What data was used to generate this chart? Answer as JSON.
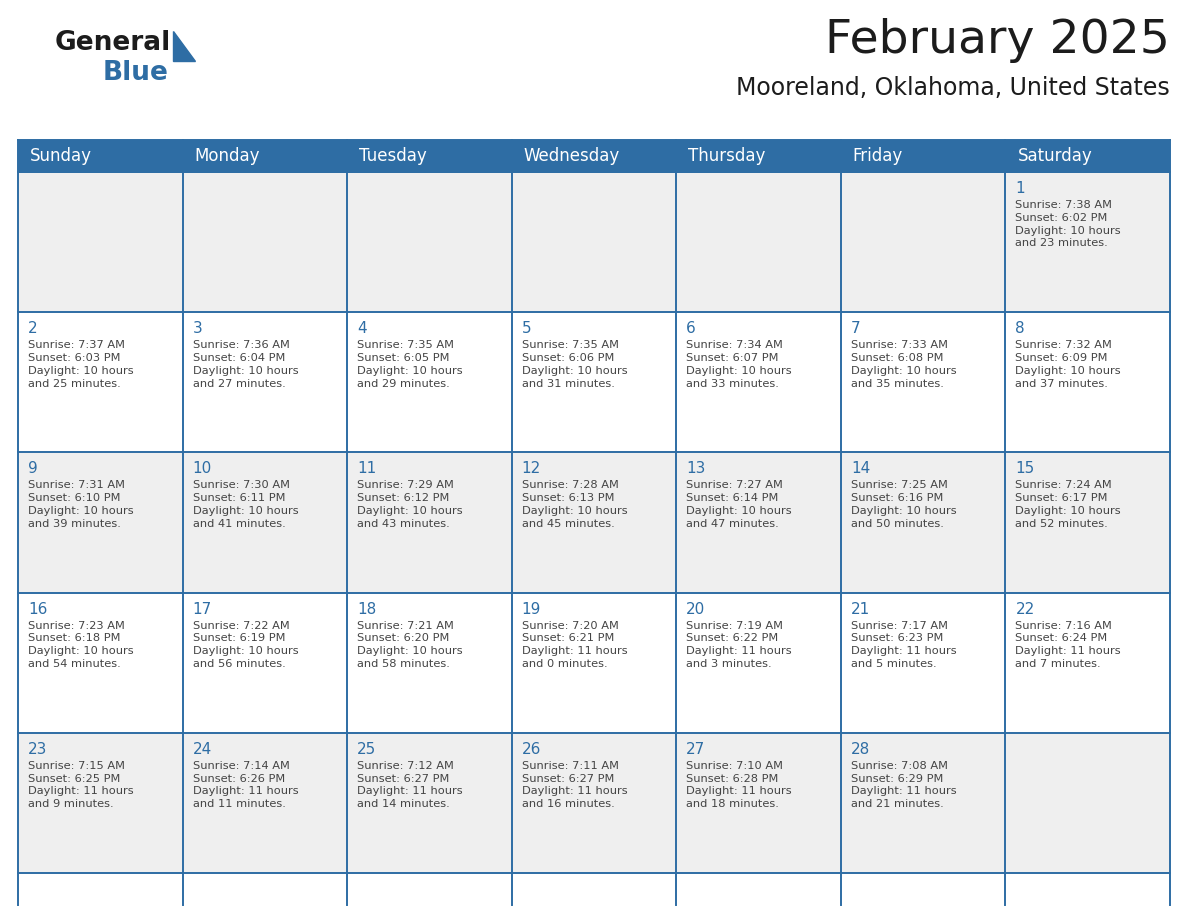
{
  "title": "February 2025",
  "subtitle": "Mooreland, Oklahoma, United States",
  "header_bg": "#2E6DA4",
  "header_text_color": "#FFFFFF",
  "cell_bg_row0": "#EFEFEF",
  "cell_bg_row1": "#FFFFFF",
  "cell_bg_row2": "#EFEFEF",
  "cell_bg_row3": "#FFFFFF",
  "cell_bg_row4": "#EFEFEF",
  "day_number_color": "#2E6DA4",
  "text_color": "#444444",
  "line_color": "#2E6DA4",
  "days_of_week": [
    "Sunday",
    "Monday",
    "Tuesday",
    "Wednesday",
    "Thursday",
    "Friday",
    "Saturday"
  ],
  "weeks": [
    [
      null,
      null,
      null,
      null,
      null,
      null,
      1
    ],
    [
      2,
      3,
      4,
      5,
      6,
      7,
      8
    ],
    [
      9,
      10,
      11,
      12,
      13,
      14,
      15
    ],
    [
      16,
      17,
      18,
      19,
      20,
      21,
      22
    ],
    [
      23,
      24,
      25,
      26,
      27,
      28,
      null
    ]
  ],
  "cell_data": {
    "1": {
      "sunrise": "7:38 AM",
      "sunset": "6:02 PM",
      "daylight": "10 hours and 23 minutes."
    },
    "2": {
      "sunrise": "7:37 AM",
      "sunset": "6:03 PM",
      "daylight": "10 hours and 25 minutes."
    },
    "3": {
      "sunrise": "7:36 AM",
      "sunset": "6:04 PM",
      "daylight": "10 hours and 27 minutes."
    },
    "4": {
      "sunrise": "7:35 AM",
      "sunset": "6:05 PM",
      "daylight": "10 hours and 29 minutes."
    },
    "5": {
      "sunrise": "7:35 AM",
      "sunset": "6:06 PM",
      "daylight": "10 hours and 31 minutes."
    },
    "6": {
      "sunrise": "7:34 AM",
      "sunset": "6:07 PM",
      "daylight": "10 hours and 33 minutes."
    },
    "7": {
      "sunrise": "7:33 AM",
      "sunset": "6:08 PM",
      "daylight": "10 hours and 35 minutes."
    },
    "8": {
      "sunrise": "7:32 AM",
      "sunset": "6:09 PM",
      "daylight": "10 hours and 37 minutes."
    },
    "9": {
      "sunrise": "7:31 AM",
      "sunset": "6:10 PM",
      "daylight": "10 hours and 39 minutes."
    },
    "10": {
      "sunrise": "7:30 AM",
      "sunset": "6:11 PM",
      "daylight": "10 hours and 41 minutes."
    },
    "11": {
      "sunrise": "7:29 AM",
      "sunset": "6:12 PM",
      "daylight": "10 hours and 43 minutes."
    },
    "12": {
      "sunrise": "7:28 AM",
      "sunset": "6:13 PM",
      "daylight": "10 hours and 45 minutes."
    },
    "13": {
      "sunrise": "7:27 AM",
      "sunset": "6:14 PM",
      "daylight": "10 hours and 47 minutes."
    },
    "14": {
      "sunrise": "7:25 AM",
      "sunset": "6:16 PM",
      "daylight": "10 hours and 50 minutes."
    },
    "15": {
      "sunrise": "7:24 AM",
      "sunset": "6:17 PM",
      "daylight": "10 hours and 52 minutes."
    },
    "16": {
      "sunrise": "7:23 AM",
      "sunset": "6:18 PM",
      "daylight": "10 hours and 54 minutes."
    },
    "17": {
      "sunrise": "7:22 AM",
      "sunset": "6:19 PM",
      "daylight": "10 hours and 56 minutes."
    },
    "18": {
      "sunrise": "7:21 AM",
      "sunset": "6:20 PM",
      "daylight": "10 hours and 58 minutes."
    },
    "19": {
      "sunrise": "7:20 AM",
      "sunset": "6:21 PM",
      "daylight": "11 hours and 0 minutes."
    },
    "20": {
      "sunrise": "7:19 AM",
      "sunset": "6:22 PM",
      "daylight": "11 hours and 3 minutes."
    },
    "21": {
      "sunrise": "7:17 AM",
      "sunset": "6:23 PM",
      "daylight": "11 hours and 5 minutes."
    },
    "22": {
      "sunrise": "7:16 AM",
      "sunset": "6:24 PM",
      "daylight": "11 hours and 7 minutes."
    },
    "23": {
      "sunrise": "7:15 AM",
      "sunset": "6:25 PM",
      "daylight": "11 hours and 9 minutes."
    },
    "24": {
      "sunrise": "7:14 AM",
      "sunset": "6:26 PM",
      "daylight": "11 hours and 11 minutes."
    },
    "25": {
      "sunrise": "7:12 AM",
      "sunset": "6:27 PM",
      "daylight": "11 hours and 14 minutes."
    },
    "26": {
      "sunrise": "7:11 AM",
      "sunset": "6:27 PM",
      "daylight": "11 hours and 16 minutes."
    },
    "27": {
      "sunrise": "7:10 AM",
      "sunset": "6:28 PM",
      "daylight": "11 hours and 18 minutes."
    },
    "28": {
      "sunrise": "7:08 AM",
      "sunset": "6:29 PM",
      "daylight": "11 hours and 21 minutes."
    }
  },
  "title_fontsize": 34,
  "subtitle_fontsize": 17,
  "header_fontsize": 12,
  "day_num_fontsize": 11,
  "cell_text_fontsize": 8.2
}
